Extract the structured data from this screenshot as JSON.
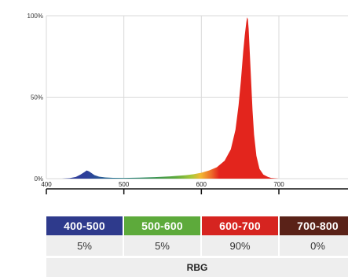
{
  "chart_data": {
    "type": "area",
    "title": "",
    "xlabel": "",
    "ylabel": "",
    "xlim": [
      400,
      800
    ],
    "ylim": [
      0,
      100
    ],
    "x_ticks": [
      "400",
      "500",
      "600",
      "700"
    ],
    "y_ticks": [
      "0%",
      "50%",
      "100%"
    ],
    "grid": true,
    "series": [
      {
        "x": [
          400,
          420,
          430,
          438,
          444,
          449,
          452,
          455,
          458,
          462,
          468,
          476,
          486,
          500,
          520,
          540,
          560,
          580,
          590,
          600,
          610,
          620,
          630,
          638,
          644,
          648,
          651,
          654,
          656,
          658,
          659,
          660,
          661,
          662,
          664,
          666,
          668,
          671,
          675,
          680,
          686,
          690,
          700,
          720,
          800
        ],
        "y": [
          0,
          0,
          0.3,
          1,
          2.5,
          4,
          5,
          4.5,
          3.5,
          2.2,
          1.2,
          0.7,
          0.5,
          0.4,
          0.6,
          0.9,
          1.4,
          2.1,
          2.7,
          3.6,
          5,
          7,
          11,
          18,
          30,
          45,
          60,
          78,
          88,
          96,
          99,
          98,
          92,
          82,
          62,
          42,
          27,
          14,
          6,
          2.5,
          1,
          0.4,
          0,
          0,
          0
        ]
      }
    ],
    "bands": [
      {
        "label": "400-500",
        "percent": "5%",
        "color": "#2E3A8C"
      },
      {
        "label": "500-600",
        "percent": "5%",
        "color": "#5DAA3B"
      },
      {
        "label": "600-700",
        "percent": "90%",
        "color": "#D62420"
      },
      {
        "label": "700-800",
        "percent": "0%",
        "color": "#5A2218"
      }
    ],
    "footer": "RBG"
  }
}
